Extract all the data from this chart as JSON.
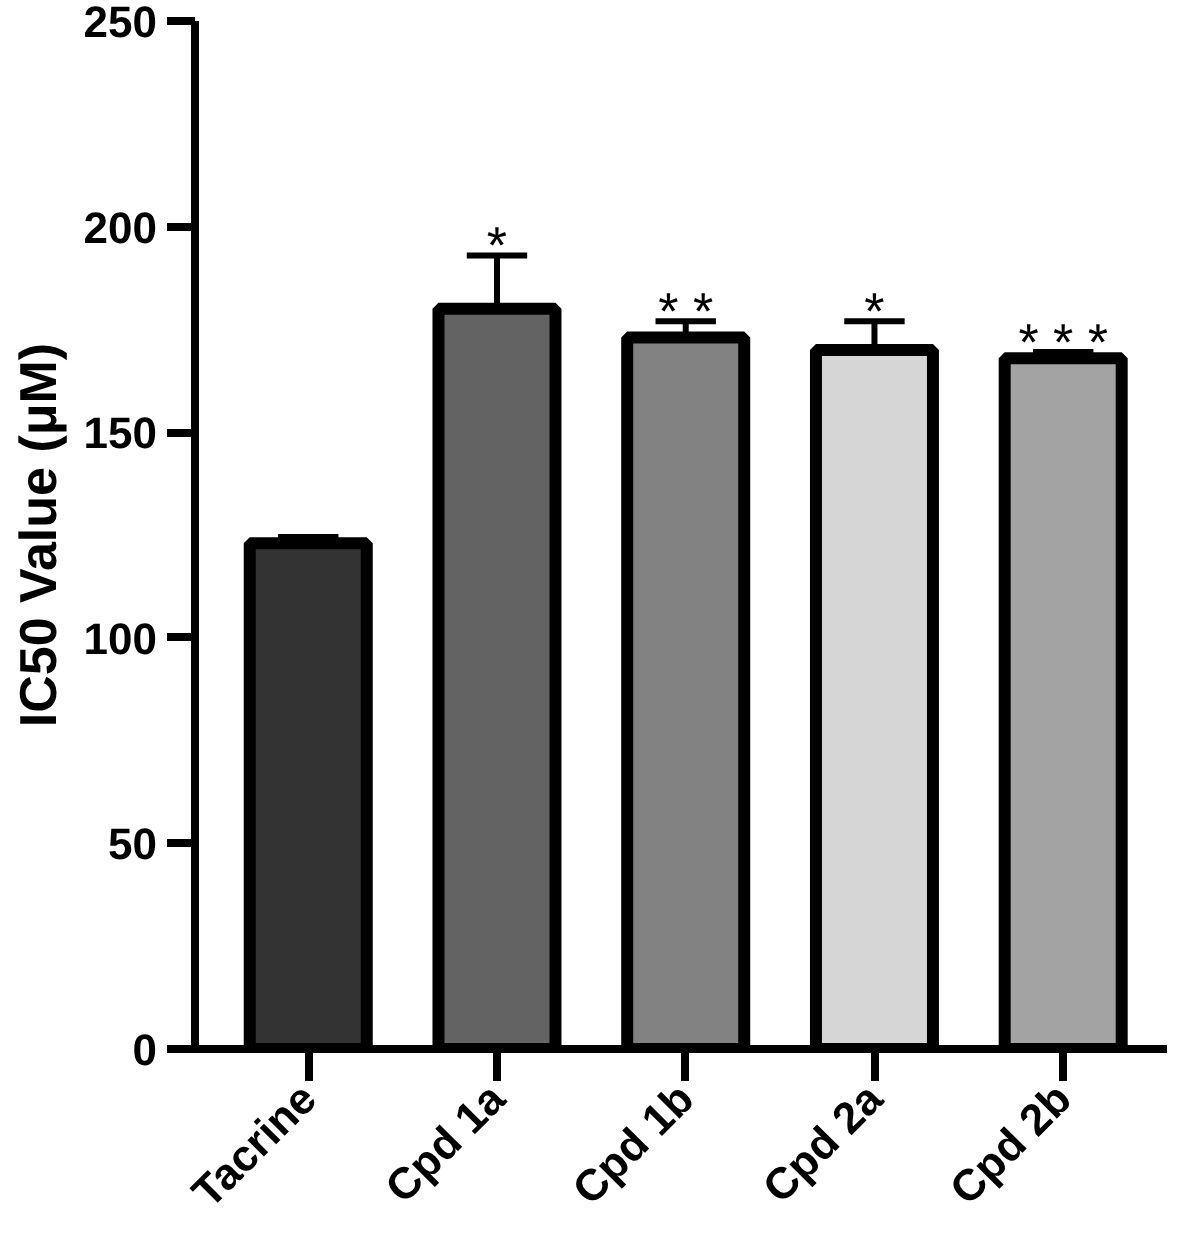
{
  "chart_data": {
    "type": "bar",
    "ylabel": "IC50 Value (μM)",
    "categories": [
      "Tacrine",
      "Cpd 1a",
      "Cpd 1b",
      "Cpd 2a",
      "Cpd 2b"
    ],
    "values": [
      123,
      180,
      173,
      170,
      168
    ],
    "colors": [
      "#333333",
      "#636363",
      "#828282",
      "#d6d6d6",
      "#a3a3a3"
    ],
    "errors": [
      1.5,
      13,
      4,
      7,
      1.5
    ],
    "ylim": [
      0,
      250
    ],
    "yticks": [
      0,
      50,
      100,
      150,
      200,
      250
    ],
    "grid": false,
    "annotations": [
      {
        "text": "*",
        "x": "Cpd 1a",
        "y": 193
      },
      {
        "text": "* *",
        "x": "Cpd 1b",
        "y": 177
      },
      {
        "text": "*",
        "x": "Cpd 2a",
        "y": 177
      },
      {
        "text": "* * *",
        "x": "Cpd 2b",
        "y": 169.5
      }
    ]
  }
}
